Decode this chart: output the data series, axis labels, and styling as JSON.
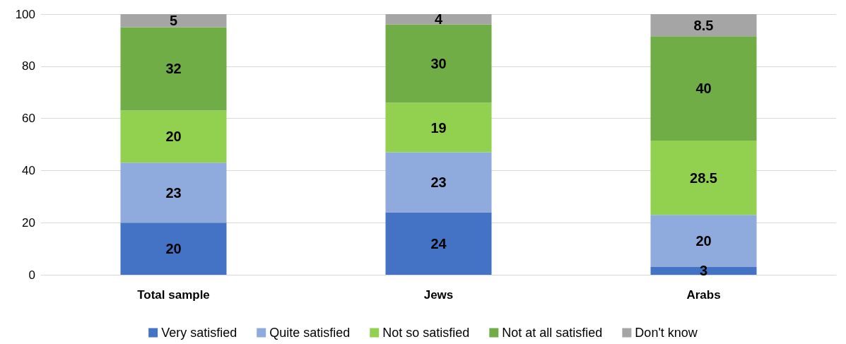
{
  "chart_data": {
    "type": "bar",
    "stacked": true,
    "categories": [
      "Total sample",
      "Jews",
      "Arabs"
    ],
    "series": [
      {
        "name": "Very satisfied",
        "color": "#4472c4",
        "values": [
          20,
          24,
          3
        ]
      },
      {
        "name": "Quite satisfied",
        "color": "#8faadc",
        "values": [
          23,
          23,
          20
        ]
      },
      {
        "name": "Not so satisfied",
        "color": "#92d050",
        "values": [
          20,
          19,
          28.5
        ]
      },
      {
        "name": "Not at all satisfied",
        "color": "#70ad47",
        "values": [
          32,
          30,
          40
        ]
      },
      {
        "name": "Don't know",
        "color": "#a5a5a5",
        "values": [
          5,
          4,
          8.5
        ]
      }
    ],
    "ylim": [
      0,
      100
    ],
    "yticks": [
      0,
      20,
      40,
      60,
      80,
      100
    ],
    "grid": "y",
    "legend": "bottom",
    "data_labels": true
  }
}
